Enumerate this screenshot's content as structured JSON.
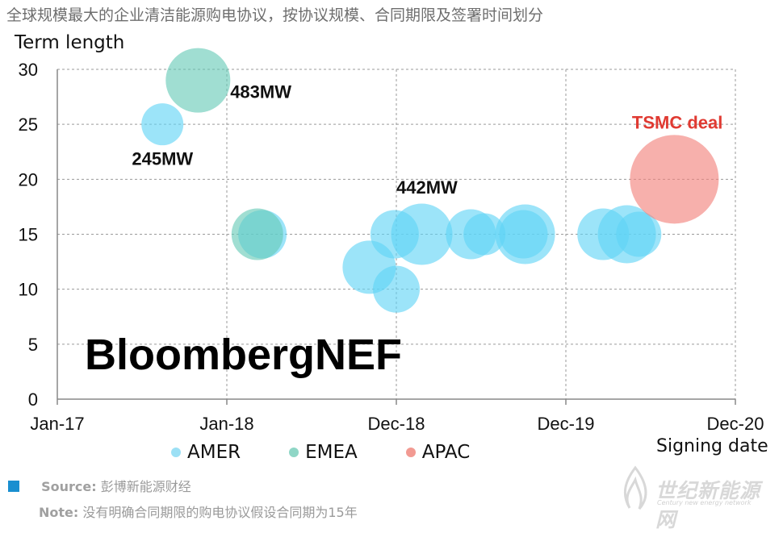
{
  "title": "全球规模最大的企业清洁能源购电协议，按协议规模、合同期限及签署时间划分",
  "watermark_text": "BloombergNEF",
  "source_label": "Source:",
  "source_text": "彭博新能源财经",
  "note_label": "Note:",
  "note_text": "没有明确合同期限的购电协议假设合同期为15年",
  "site_watermark": {
    "name": "世纪新能源网",
    "sub": "Century new energy network"
  },
  "colors": {
    "AMER": "#5fd3f6",
    "EMEA": "#66c9b6",
    "APAC": "#f28079",
    "source_square": "#1a8fd0"
  },
  "chart_data": {
    "type": "scatter",
    "ylabel": "Term length",
    "xlabel": "Signing date",
    "x_ticks": [
      "Jan-17",
      "Jan-18",
      "Dec-18",
      "Dec-19",
      "Dec-20"
    ],
    "y_ticks": [
      0,
      5,
      10,
      15,
      20,
      25,
      30
    ],
    "ylim": [
      0,
      30
    ],
    "xlim": [
      0,
      4
    ],
    "grid": true,
    "legend_position": "bottom",
    "series": [
      {
        "name": "AMER",
        "color": "#5fd3f6",
        "points": [
          {
            "x": 0.62,
            "y": 25,
            "r": 26
          },
          {
            "x": 1.21,
            "y": 15,
            "r": 30
          },
          {
            "x": 1.84,
            "y": 12,
            "r": 33
          },
          {
            "x": 1.99,
            "y": 15,
            "r": 30
          },
          {
            "x": 2.0,
            "y": 10,
            "r": 29
          },
          {
            "x": 2.15,
            "y": 15,
            "r": 38
          },
          {
            "x": 2.44,
            "y": 15,
            "r": 31
          },
          {
            "x": 2.52,
            "y": 15,
            "r": 26
          },
          {
            "x": 2.75,
            "y": 15,
            "r": 30
          },
          {
            "x": 2.76,
            "y": 15,
            "r": 37
          },
          {
            "x": 3.22,
            "y": 15,
            "r": 32
          },
          {
            "x": 3.36,
            "y": 15,
            "r": 36
          },
          {
            "x": 3.43,
            "y": 15,
            "r": 28
          }
        ]
      },
      {
        "name": "EMEA",
        "color": "#66c9b6",
        "points": [
          {
            "x": 0.83,
            "y": 29,
            "r": 40
          },
          {
            "x": 1.18,
            "y": 15,
            "r": 32
          }
        ]
      },
      {
        "name": "APAC",
        "color": "#f28079",
        "points": [
          {
            "x": 3.64,
            "y": 20,
            "r": 55
          }
        ]
      }
    ],
    "annotations": [
      {
        "text": "483MW",
        "x": 1.02,
        "y": 27.4,
        "color": "#111111"
      },
      {
        "text": "245MW",
        "x": 0.44,
        "y": 21.3,
        "color": "#111111"
      },
      {
        "text": "442MW",
        "x": 2.0,
        "y": 18.7,
        "color": "#111111"
      },
      {
        "text": "TSMC deal",
        "x": 3.39,
        "y": 24.6,
        "color": "#e03a32"
      }
    ]
  },
  "legend": [
    {
      "label": "AMER",
      "color": "#9ce0f5"
    },
    {
      "label": "EMEA",
      "color": "#8fd6c6"
    },
    {
      "label": "APAC",
      "color": "#f29a92"
    }
  ]
}
